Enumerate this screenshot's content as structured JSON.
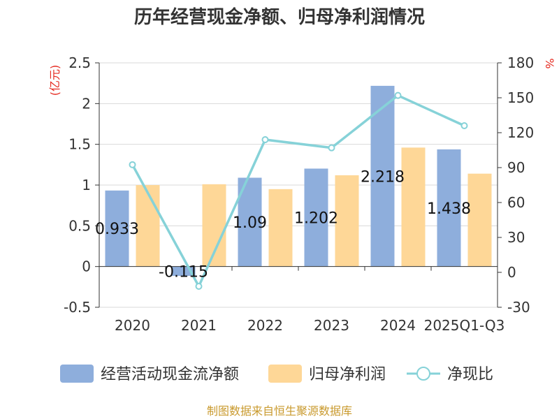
{
  "chart_data": {
    "type": "bar",
    "title": "历年经营现金净额、归母净利润情况",
    "categories": [
      "2020",
      "2021",
      "2022",
      "2023",
      "2024",
      "2025Q1-Q3"
    ],
    "series": [
      {
        "name": "经营活动现金流净额",
        "axis": "left",
        "kind": "bar",
        "color": "#8eaedc",
        "values": [
          0.933,
          -0.115,
          1.09,
          1.202,
          2.218,
          1.438
        ],
        "labels": [
          "0.933",
          "-0.115",
          "1.09",
          "1.202",
          "2.218",
          "1.438"
        ]
      },
      {
        "name": "归母净利润",
        "axis": "left",
        "kind": "bar",
        "color": "#fed797",
        "values": [
          1.0,
          1.01,
          0.95,
          1.12,
          1.46,
          1.14
        ]
      },
      {
        "name": "净现比",
        "axis": "right",
        "kind": "line",
        "color": "#86d2d8",
        "values": [
          92.5,
          -12,
          114,
          107,
          152,
          126
        ]
      }
    ],
    "y_left": {
      "unit": "(亿元)",
      "ylim": [
        -0.5,
        2.5
      ],
      "ticks": [
        "-0.5",
        "0",
        "0.5",
        "1",
        "1.5",
        "2",
        "2.5"
      ]
    },
    "y_right": {
      "unit": "%",
      "ylim": [
        -30,
        180
      ],
      "ticks": [
        "-30",
        "0",
        "30",
        "60",
        "90",
        "120",
        "150",
        "180"
      ]
    },
    "grid": true,
    "legend": "bottom",
    "accent_color": "#e5291f",
    "source": "制图数据来自恒生聚源数据库",
    "source_color": "#c99a2e"
  }
}
